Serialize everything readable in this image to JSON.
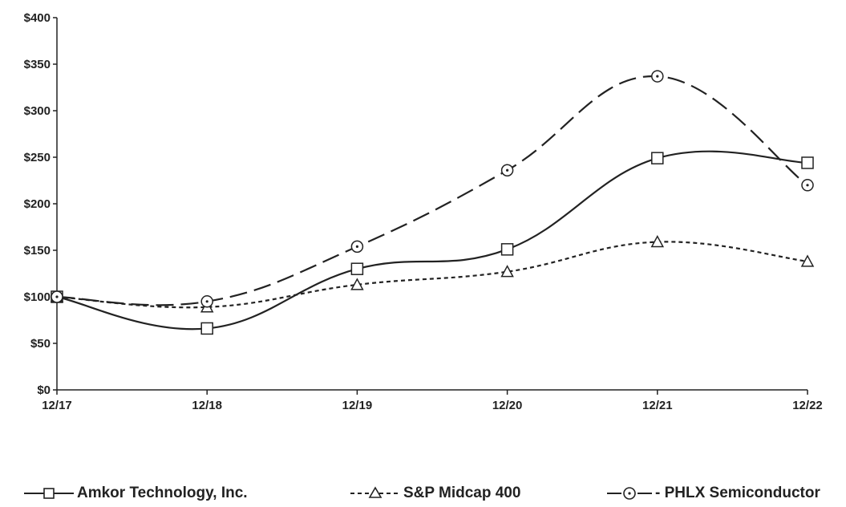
{
  "chart_data": {
    "type": "line",
    "categories": [
      "12/17",
      "12/18",
      "12/19",
      "12/20",
      "12/21",
      "12/22"
    ],
    "series": [
      {
        "name": "Amkor Technology, Inc.",
        "values": [
          100,
          66,
          130,
          151,
          249,
          244
        ],
        "marker": "square",
        "dash": "solid"
      },
      {
        "name": "S&P Midcap 400",
        "values": [
          100,
          89,
          113,
          127,
          159,
          138
        ],
        "marker": "triangle",
        "dash": "short-dash"
      },
      {
        "name": "PHLX Semiconductor",
        "values": [
          100,
          95,
          154,
          236,
          337,
          220
        ],
        "marker": "circle",
        "dash": "long-dash"
      }
    ],
    "ylim": [
      0,
      400
    ],
    "yticks": [
      0,
      50,
      100,
      150,
      200,
      250,
      300,
      350,
      400
    ],
    "ytick_labels": [
      "$0",
      "$50",
      "$100",
      "$150",
      "$200",
      "$250",
      "$300",
      "$350",
      "$400"
    ],
    "title": "",
    "xlabel": "",
    "ylabel": "",
    "grid": false,
    "legend_position": "bottom",
    "line_color": "#222222"
  },
  "legend": {
    "amkor_label": "Amkor Technology, Inc.",
    "sp_label": "S&P Midcap 400",
    "phlx_label": "- PHLX Semiconductor"
  }
}
